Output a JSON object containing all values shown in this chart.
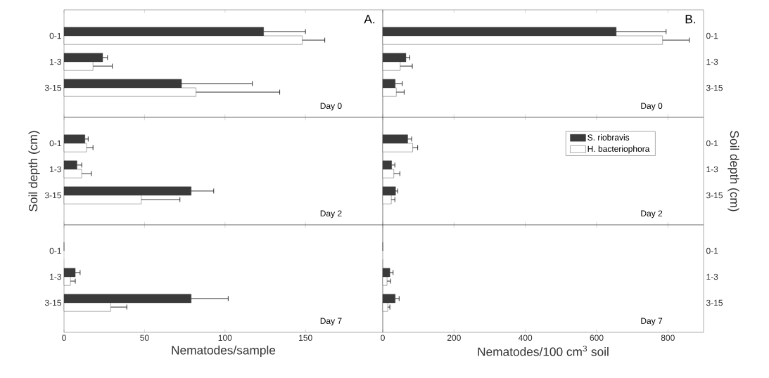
{
  "chart_data": [
    {
      "type": "bar",
      "orientation": "horizontal",
      "title": "A.",
      "annotations": [
        "Day 0"
      ],
      "categories": [
        "0-1",
        "1-3",
        "3-15"
      ],
      "xlim": [
        0,
        198
      ],
      "xticks": [
        0,
        50,
        100,
        150
      ],
      "tick_labels": "y",
      "series": [
        {
          "color": "#3a3a3a",
          "values": [
            124,
            24,
            73
          ],
          "errors": [
            [
              124,
              150
            ],
            [
              24,
              27
            ],
            [
              73,
              117
            ]
          ]
        },
        {
          "color": "#ffffff",
          "values": [
            148,
            18,
            82
          ],
          "errors": [
            [
              148,
              162
            ],
            [
              18,
              30
            ],
            [
              82,
              134
            ]
          ]
        }
      ]
    },
    {
      "type": "bar",
      "orientation": "horizontal",
      "title": "B.",
      "annotations": [
        "Day 0"
      ],
      "categories": [
        "0-1",
        "1-3",
        "3-15"
      ],
      "xlim": [
        0,
        900
      ],
      "xticks": [
        0,
        200,
        400,
        600,
        800
      ],
      "tick_labels": "y",
      "series": [
        {
          "color": "#3a3a3a",
          "values": [
            655,
            65,
            35
          ],
          "errors": [
            [
              655,
              795
            ],
            [
              65,
              76
            ],
            [
              35,
              55
            ]
          ]
        },
        {
          "color": "#ffffff",
          "values": [
            785,
            49,
            38
          ],
          "errors": [
            [
              785,
              860
            ],
            [
              49,
              83
            ],
            [
              38,
              60
            ]
          ]
        }
      ]
    },
    {
      "type": "bar",
      "orientation": "horizontal",
      "ylabel": "Soil depth (cm)",
      "annotations": [
        "Day 2"
      ],
      "categories": [
        "0-1",
        "1-3",
        "3-15"
      ],
      "xlim": [
        0,
        198
      ],
      "xticks": [
        0,
        50,
        100,
        150
      ],
      "tick_labels": "y",
      "series": [
        {
          "color": "#3a3a3a",
          "values": [
            13,
            8,
            79
          ],
          "errors": [
            [
              13,
              15
            ],
            [
              8,
              11
            ],
            [
              79,
              93
            ]
          ]
        },
        {
          "color": "#ffffff",
          "values": [
            14,
            11,
            48
          ],
          "errors": [
            [
              14,
              18
            ],
            [
              11,
              17
            ],
            [
              48,
              72
            ]
          ]
        }
      ]
    },
    {
      "type": "bar",
      "orientation": "horizontal",
      "ylabel": "Soil depth (cm)",
      "annotations": [
        "Day 2"
      ],
      "categories": [
        "0-1",
        "1-3",
        "3-15"
      ],
      "xlim": [
        0,
        900
      ],
      "xticks": [
        0,
        200,
        400,
        600,
        800
      ],
      "tick_labels": "y",
      "legend": "top right",
      "series": [
        {
          "name": "S. riobravis",
          "color": "#3a3a3a",
          "values": [
            70,
            25,
            36
          ],
          "errors": [
            [
              70,
              81
            ],
            [
              25,
              34
            ],
            [
              36,
              42
            ]
          ]
        },
        {
          "name": "H. bacteriophora",
          "color": "#ffffff",
          "values": [
            84,
            31,
            24
          ],
          "errors": [
            [
              84,
              98
            ],
            [
              31,
              48
            ],
            [
              24,
              34
            ]
          ]
        }
      ]
    },
    {
      "type": "bar",
      "orientation": "horizontal",
      "xlabel": "Nematodes/sample",
      "annotations": [
        "Day 7"
      ],
      "categories": [
        "0-1",
        "1-3",
        "3-15"
      ],
      "xlim": [
        0,
        198
      ],
      "xticks": [
        0,
        50,
        100,
        150
      ],
      "series": [
        {
          "color": "#3a3a3a",
          "values": [
            0,
            7,
            79
          ],
          "errors": [
            null,
            [
              7,
              10
            ],
            [
              79,
              102
            ]
          ]
        },
        {
          "color": "#ffffff",
          "values": [
            0,
            4,
            29
          ],
          "errors": [
            null,
            [
              4,
              7
            ],
            [
              29,
              39
            ]
          ]
        }
      ]
    },
    {
      "type": "bar",
      "orientation": "horizontal",
      "xlabel": "Nematodes/100 cm$^{3}$ soil",
      "annotations": [
        "Day 7"
      ],
      "categories": [
        "0-1",
        "1-3",
        "3-15"
      ],
      "xlim": [
        0,
        900
      ],
      "xticks": [
        0,
        200,
        400,
        600,
        800
      ],
      "series": [
        {
          "color": "#3a3a3a",
          "values": [
            0,
            20,
            35
          ],
          "errors": [
            null,
            [
              20,
              29
            ],
            [
              35,
              46
            ]
          ]
        },
        {
          "color": "#ffffff",
          "values": [
            0,
            12,
            14
          ],
          "errors": [
            null,
            [
              12,
              22
            ],
            [
              14,
              20
            ]
          ]
        }
      ]
    }
  ]
}
